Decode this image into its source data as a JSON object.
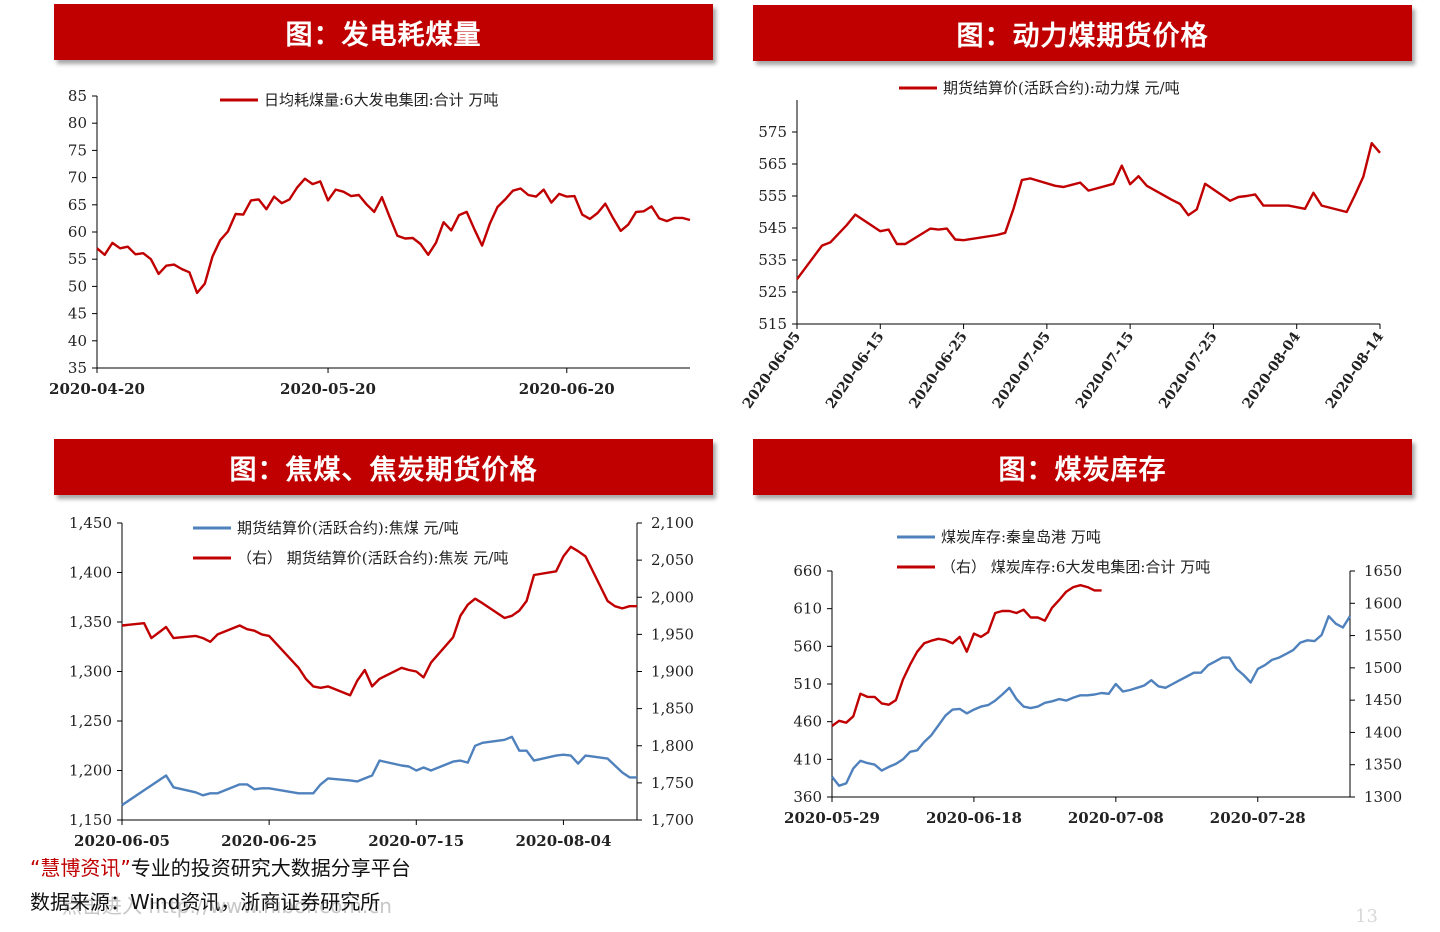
{
  "colors": {
    "banner": "#c00000",
    "red_series": "#c00000",
    "blue_series": "#4f81bd",
    "axis": "#000000"
  },
  "footer": {
    "quote_open": "“",
    "brand": "慧博资讯",
    "quote_close": "”",
    "tagline": "专业的投资研究大数据分享平台",
    "source": "数据来源：Wind资讯，浙商证券研究所",
    "watermark": "点击进入  http://www.hibor.com.cn",
    "page_number": "13"
  },
  "chart_data": [
    {
      "id": "coal-consumption",
      "type": "line",
      "title": "图：发电耗煤量",
      "x_tick_labels": [
        "2020-04-20",
        "2020-05-20",
        "2020-06-20"
      ],
      "x_tick_indices": [
        0,
        30,
        61
      ],
      "y_ticks": [
        35,
        40,
        45,
        50,
        55,
        60,
        65,
        70,
        75,
        80,
        85
      ],
      "ylim": [
        35,
        85
      ],
      "series": [
        {
          "name": "日均耗煤量:6大发电集团:合计  万吨",
          "color": "#c00000",
          "axis": "left",
          "values": [
            57.0,
            55.8,
            58.0,
            57.0,
            57.3,
            55.9,
            56.1,
            55.0,
            52.3,
            53.8,
            54.0,
            53.2,
            52.6,
            48.8,
            50.5,
            55.5,
            58.5,
            60.1,
            63.3,
            63.2,
            65.8,
            66.0,
            64.2,
            66.5,
            65.3,
            66.0,
            68.2,
            69.8,
            68.8,
            69.3,
            65.8,
            67.8,
            67.4,
            66.6,
            66.8,
            65.1,
            63.7,
            66.4,
            62.8,
            59.3,
            58.8,
            58.9,
            57.8,
            55.8,
            58.0,
            61.8,
            60.3,
            63.1,
            63.7,
            60.5,
            57.5,
            61.5,
            64.6,
            66.0,
            67.6,
            68.0,
            66.8,
            66.5,
            67.8,
            65.4,
            67.0,
            66.5,
            66.6,
            63.2,
            62.4,
            63.5,
            65.2,
            62.6,
            60.2,
            61.4,
            63.7,
            63.8,
            64.7,
            62.5,
            62.0,
            62.6,
            62.6,
            62.2
          ]
        }
      ]
    },
    {
      "id": "thermal-coal-futures",
      "type": "line",
      "title": "图：动力煤期货价格",
      "x_tick_labels": [
        "2020-06-05",
        "2020-06-15",
        "2020-06-25",
        "2020-07-05",
        "2020-07-15",
        "2020-07-25",
        "2020-08-04",
        "2020-08-14"
      ],
      "x_tick_indices": [
        0,
        10,
        20,
        30,
        40,
        50,
        60,
        70
      ],
      "y_ticks": [
        515,
        525,
        535,
        545,
        555,
        565,
        575
      ],
      "ylim": [
        515,
        580
      ],
      "x": [
        0,
        3,
        4,
        6,
        7,
        10,
        11,
        12,
        13,
        16,
        17,
        18,
        19,
        20,
        24,
        25,
        26,
        27,
        28,
        31,
        32,
        33,
        34,
        35,
        38,
        39,
        40,
        41,
        42,
        45,
        46,
        47,
        48,
        49,
        52,
        53,
        54,
        55,
        56,
        59,
        60,
        61,
        62,
        63,
        66,
        67,
        68,
        69,
        70
      ],
      "series": [
        {
          "name": "期货结算价(活跃合约):动力煤  元/吨",
          "color": "#c00000",
          "axis": "left",
          "values": [
            529.0,
            539.5,
            540.5,
            546.0,
            549.2,
            544.0,
            544.5,
            540.0,
            540.0,
            544.8,
            544.5,
            544.8,
            541.4,
            541.2,
            542.8,
            543.5,
            551.0,
            560.0,
            560.5,
            558.2,
            557.8,
            558.5,
            559.2,
            556.7,
            558.8,
            564.5,
            558.7,
            561.2,
            558.2,
            553.8,
            552.5,
            549.0,
            550.8,
            558.8,
            553.5,
            554.7,
            555.0,
            555.5,
            552.0,
            552.0,
            551.5,
            551.0,
            556.0,
            552.0,
            550.0,
            555.3,
            561.0,
            571.5,
            568.5
          ]
        }
      ]
    },
    {
      "id": "coking-coal-coke-futures",
      "type": "line",
      "title": "图：焦煤、焦炭期货价格",
      "x_tick_labels": [
        "2020-06-05",
        "2020-06-25",
        "2020-07-15",
        "2020-08-04"
      ],
      "x_tick_indices": [
        0,
        20,
        40,
        60
      ],
      "y_ticks_left": [
        "1,150",
        "1,200",
        "1,250",
        "1,300",
        "1,350",
        "1,400",
        "1,450"
      ],
      "y_ticks_right": [
        "1,700",
        "1,750",
        "1,800",
        "1,850",
        "1,900",
        "1,950",
        "2,000",
        "2,050",
        "2,100"
      ],
      "ylim_left": [
        1150,
        1450
      ],
      "ylim_right": [
        1700,
        2100
      ],
      "x": [
        0,
        3,
        4,
        6,
        7,
        10,
        11,
        12,
        13,
        16,
        17,
        18,
        19,
        20,
        24,
        25,
        26,
        27,
        28,
        31,
        32,
        33,
        34,
        35,
        38,
        39,
        40,
        41,
        42,
        45,
        46,
        47,
        48,
        49,
        52,
        53,
        54,
        55,
        56,
        59,
        60,
        61,
        62,
        63,
        66,
        67,
        68,
        69,
        70
      ],
      "series": [
        {
          "name": "期货结算价(活跃合约):焦煤  元/吨",
          "color": "#4f81bd",
          "axis": "left",
          "values": [
            1165.0,
            1180.0,
            1185.0,
            1195.0,
            1183.0,
            1178.0,
            1175.0,
            1177.0,
            1177.0,
            1186.0,
            1186.0,
            1181.0,
            1182.0,
            1182.0,
            1177.0,
            1177.0,
            1177.0,
            1186.0,
            1192.0,
            1190.0,
            1189.0,
            1192.0,
            1195.0,
            1210.0,
            1205.0,
            1204.0,
            1200.0,
            1203.0,
            1200.0,
            1209.0,
            1210.0,
            1208.0,
            1225.0,
            1228.0,
            1231.0,
            1234.0,
            1220.0,
            1220.0,
            1210.0,
            1215.0,
            1216.0,
            1215.0,
            1207.0,
            1215.0,
            1212.0,
            1205.0,
            1198.0,
            1193.0,
            1193.0
          ]
        },
        {
          "name": "（右） 期货结算价(活跃合约):焦炭  元/吨",
          "color": "#c00000",
          "axis": "right",
          "values": [
            1962.0,
            1965.0,
            1945.0,
            1960.0,
            1945.0,
            1948.0,
            1945.0,
            1940.0,
            1950.0,
            1962.0,
            1957.0,
            1955.0,
            1950.0,
            1948.0,
            1905.0,
            1890.0,
            1880.0,
            1878.0,
            1880.0,
            1868.0,
            1888.0,
            1902.0,
            1880.0,
            1890.0,
            1905.0,
            1902.0,
            1900.0,
            1892.0,
            1912.0,
            1946.0,
            1975.0,
            1990.0,
            1998.0,
            1992.0,
            1972.0,
            1975.0,
            1982.0,
            1995.0,
            2030.0,
            2035.0,
            2055.0,
            2068.0,
            2062.0,
            2055.0,
            1995.0,
            1988.0,
            1985.0,
            1988.0,
            1988.0
          ]
        }
      ]
    },
    {
      "id": "coal-inventory",
      "type": "line",
      "title": "图：煤炭库存",
      "x_tick_labels": [
        "2020-05-29",
        "2020-06-18",
        "2020-07-08",
        "2020-07-28"
      ],
      "x_tick_indices": [
        0,
        20,
        40,
        60
      ],
      "y_ticks_left": [
        "360",
        "410",
        "460",
        "510",
        "560",
        "610",
        "660"
      ],
      "y_ticks_right": [
        "1300",
        "1350",
        "1400",
        "1450",
        "1500",
        "1550",
        "1600",
        "1650"
      ],
      "ylim_left": [
        360,
        660
      ],
      "ylim_right": [
        1300,
        1650
      ],
      "series": [
        {
          "name": "煤炭库存:秦皇岛港  万吨",
          "color": "#4f81bd",
          "axis": "left",
          "values": [
            387.0,
            375.0,
            378.0,
            398.0,
            408.0,
            405.0,
            403.0,
            395.0,
            400.0,
            404.0,
            410.0,
            420.0,
            422.0,
            433.0,
            442.0,
            455.0,
            468.0,
            476.0,
            477.0,
            471.0,
            476.0,
            480.0,
            482.0,
            488.0,
            496.0,
            505.0,
            490.0,
            480.0,
            478.0,
            480.0,
            485.0,
            487.0,
            490.0,
            488.0,
            492.0,
            495.0,
            495.0,
            496.0,
            498.0,
            497.0,
            510.0,
            500.0,
            502.0,
            505.0,
            508.0,
            515.0,
            507.0,
            505.0,
            510.0,
            515.0,
            520.0,
            525.0,
            525.0,
            535.0,
            540.0,
            545.0,
            545.0,
            530.0,
            522.0,
            512.0,
            530.0,
            535.0,
            542.0,
            545.0,
            550.0,
            555.0,
            565.0,
            568.0,
            567.0,
            575.0,
            600.0,
            590.0,
            585.0,
            600.0
          ]
        },
        {
          "name": "（右） 煤炭库存:6大发电集团:合计  万吨",
          "color": "#c00000",
          "axis": "right",
          "values": [
            1410.0,
            1418.0,
            1415.0,
            1425.0,
            1460.0,
            1455.0,
            1455.0,
            1445.0,
            1443.0,
            1450.0,
            1482.0,
            1505.0,
            1525.0,
            1538.0,
            1542.0,
            1545.0,
            1543.0,
            1538.0,
            1548.0,
            1525.0,
            1553.0,
            1548.0,
            1555.0,
            1585.0,
            1588.0,
            1588.0,
            1585.0,
            1590.0,
            1578.0,
            1578.0,
            1573.0,
            1593.0,
            1605.0,
            1618.0,
            1625.0,
            1628.0,
            1625.0,
            1620.0,
            1620.0
          ]
        }
      ]
    }
  ]
}
